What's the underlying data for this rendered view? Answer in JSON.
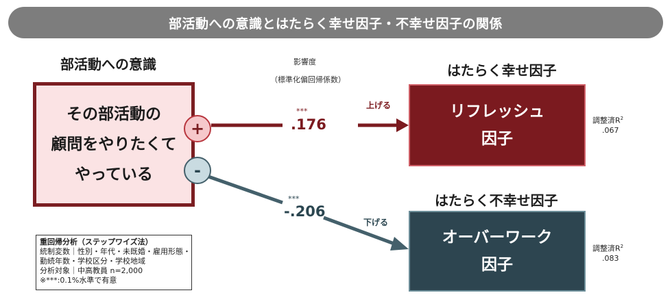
{
  "banner": {
    "title": "部活動への意識とはたらく幸せ因子・不幸せ因子の関係"
  },
  "left": {
    "heading": "部活動への意識",
    "box_lines": [
      "その部活動の",
      "顧問をやりたくて",
      "やっている"
    ],
    "plus_symbol": "+",
    "minus_symbol": "-"
  },
  "influence": {
    "label": "影響度",
    "sublabel": "（標準化偏回帰係数）"
  },
  "positive": {
    "stars": "***",
    "coefficient": ".176",
    "direction": "上げる",
    "heading": "はたらく幸せ因子",
    "box_lines": [
      "リフレッシュ",
      "因子"
    ],
    "r2_label": "調整済R",
    "r2_sup": "2",
    "r2_value": ".067",
    "color": "#7b1a1f"
  },
  "negative": {
    "stars": "***",
    "coefficient": "-.206",
    "direction": "下げる",
    "heading": "はたらく不幸せ因子",
    "box_lines": [
      "オーバーワーク",
      "因子"
    ],
    "r2_label": "調整済R",
    "r2_sup": "2",
    "r2_value": ".083",
    "color": "#2d4550"
  },
  "note": {
    "title": "重回帰分析（ステップワイズ法）",
    "lines": [
      "統制変数｜性別・年代・未既婚・雇用形態・",
      "勤続年数・学校区分・学校地域",
      "分析対象｜中高教員 n=2,000",
      "※***:0.1%水準で有意"
    ]
  }
}
